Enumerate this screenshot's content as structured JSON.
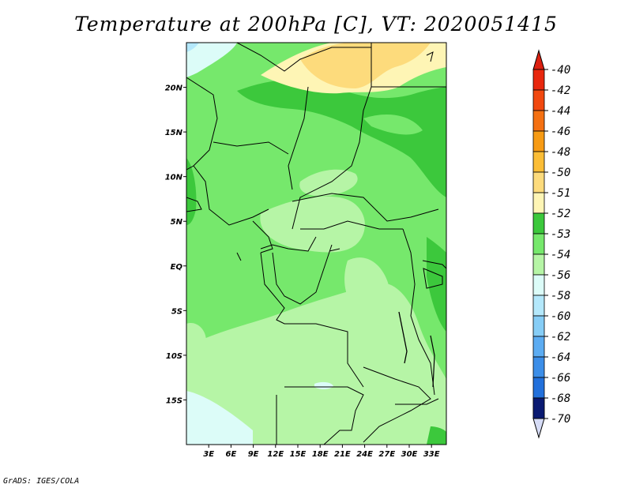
{
  "title": "Temperature at 200hPa [C], VT: 2020051415",
  "credit": "GrADS: IGES/COLA",
  "map": {
    "lon_range": [
      0,
      35
    ],
    "lat_range": [
      -20,
      25
    ],
    "lat_ticks": [
      {
        "lat": 20,
        "label": "20N"
      },
      {
        "lat": 15,
        "label": "15N"
      },
      {
        "lat": 10,
        "label": "10N"
      },
      {
        "lat": 5,
        "label": "5N"
      },
      {
        "lat": 0,
        "label": "EQ"
      },
      {
        "lat": -5,
        "label": "5S"
      },
      {
        "lat": -10,
        "label": "10S"
      },
      {
        "lat": -15,
        "label": "15S"
      }
    ],
    "lon_ticks": [
      {
        "lon": 3,
        "label": "3E"
      },
      {
        "lon": 6,
        "label": "6E"
      },
      {
        "lon": 9,
        "label": "9E"
      },
      {
        "lon": 12,
        "label": "12E"
      },
      {
        "lon": 15,
        "label": "15E"
      },
      {
        "lon": 18,
        "label": "18E"
      },
      {
        "lon": 21,
        "label": "21E"
      },
      {
        "lon": 24,
        "label": "24E"
      },
      {
        "lon": 27,
        "label": "27E"
      },
      {
        "lon": 30,
        "label": "30E"
      },
      {
        "lon": 33,
        "label": "33E"
      }
    ]
  },
  "colorbar": {
    "levels": [
      {
        "label": "-40",
        "color": "#e8270e"
      },
      {
        "label": "-42",
        "color": "#f1480f"
      },
      {
        "label": "-44",
        "color": "#f47012"
      },
      {
        "label": "-46",
        "color": "#f79b14"
      },
      {
        "label": "-48",
        "color": "#fbbd36"
      },
      {
        "label": "-50",
        "color": "#fddb7c"
      },
      {
        "label": "-51",
        "color": "#fef5b5"
      },
      {
        "label": "-52",
        "color": "#3cc83c"
      },
      {
        "label": "-53",
        "color": "#76e86c"
      },
      {
        "label": "-54",
        "color": "#b6f5a6"
      },
      {
        "label": "-56",
        "color": "#dcfcf8"
      },
      {
        "label": "-58",
        "color": "#b4e8fb"
      },
      {
        "label": "-60",
        "color": "#86cdf6"
      },
      {
        "label": "-62",
        "color": "#5cacf2"
      },
      {
        "label": "-64",
        "color": "#3c8ee8"
      },
      {
        "label": "-66",
        "color": "#2270db"
      },
      {
        "label": "-68",
        "color": "#1350c3"
      },
      {
        "label": "-70",
        "color": "#0a2d9c"
      }
    ],
    "top_extension_color": "#dc2010",
    "bottom_extension_color": "#d6dcf6",
    "deepest_color": "#0a1a72"
  }
}
